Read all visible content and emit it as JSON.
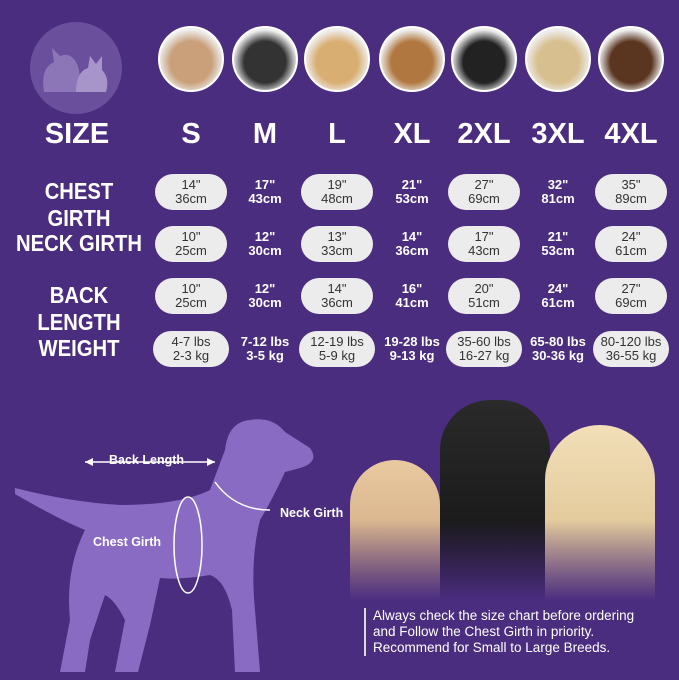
{
  "header_label": "SIZE",
  "sizes": [
    "S",
    "M",
    "L",
    "XL",
    "2XL",
    "3XL",
    "4XL"
  ],
  "rows": [
    {
      "label": "CHEST GIRTH",
      "values": [
        [
          "14\"",
          "36cm"
        ],
        [
          "17\"",
          "43cm"
        ],
        [
          "19\"",
          "48cm"
        ],
        [
          "21\"",
          "53cm"
        ],
        [
          "27\"",
          "69cm"
        ],
        [
          "32\"",
          "81cm"
        ],
        [
          "35\"",
          "89cm"
        ]
      ]
    },
    {
      "label": "NECK GIRTH",
      "values": [
        [
          "10\"",
          "25cm"
        ],
        [
          "12\"",
          "30cm"
        ],
        [
          "13\"",
          "33cm"
        ],
        [
          "14\"",
          "36cm"
        ],
        [
          "17\"",
          "43cm"
        ],
        [
          "21\"",
          "53cm"
        ],
        [
          "24\"",
          "61cm"
        ]
      ]
    },
    {
      "label": "BACK LENGTH",
      "values": [
        [
          "10\"",
          "25cm"
        ],
        [
          "12\"",
          "30cm"
        ],
        [
          "14\"",
          "36cm"
        ],
        [
          "16\"",
          "41cm"
        ],
        [
          "20\"",
          "51cm"
        ],
        [
          "24\"",
          "61cm"
        ],
        [
          "27\"",
          "69cm"
        ]
      ]
    },
    {
      "label": "WEIGHT",
      "values": [
        [
          "4-7 lbs",
          "2-3 kg"
        ],
        [
          "7-12 lbs",
          "3-5 kg"
        ],
        [
          "12-19 lbs",
          "5-9 kg"
        ],
        [
          "19-28 lbs",
          "9-13 kg"
        ],
        [
          "35-60 lbs",
          "16-27 kg"
        ],
        [
          "65-80 lbs",
          "30-36 kg"
        ],
        [
          "80-120 lbs",
          "36-55 kg"
        ]
      ]
    }
  ],
  "diagram": {
    "back_length": "Back Length",
    "neck_girth": "Neck Girth",
    "chest_girth": "Chest Girth"
  },
  "note": [
    "Always check the size chart before ordering",
    "and Follow the Chest Girth in priority.",
    "Recommend for Small to Large Breeds."
  ],
  "colors": {
    "background": "#4b2d80",
    "pill": "#ececec",
    "silhouette": "#8a6bc4"
  }
}
